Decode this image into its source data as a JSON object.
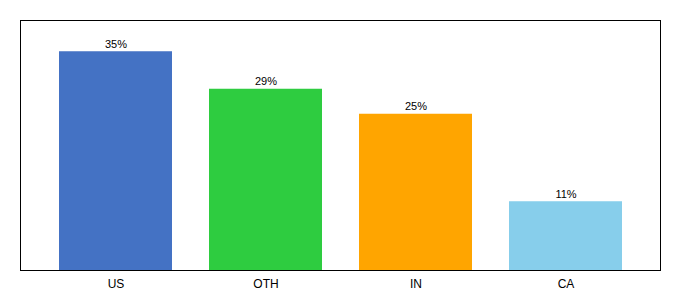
{
  "chart_data": {
    "type": "bar",
    "categories": [
      "US",
      "OTH",
      "IN",
      "CA"
    ],
    "values": [
      35,
      29,
      25,
      11
    ],
    "value_labels": [
      "35%",
      "29%",
      "25%",
      "11%"
    ],
    "colors": [
      "#4472C4",
      "#2ECC40",
      "#FFA500",
      "#87CEEB"
    ],
    "ylim": [
      0,
      40
    ],
    "data_labels": true,
    "tick_labels": "x",
    "grid": false
  }
}
